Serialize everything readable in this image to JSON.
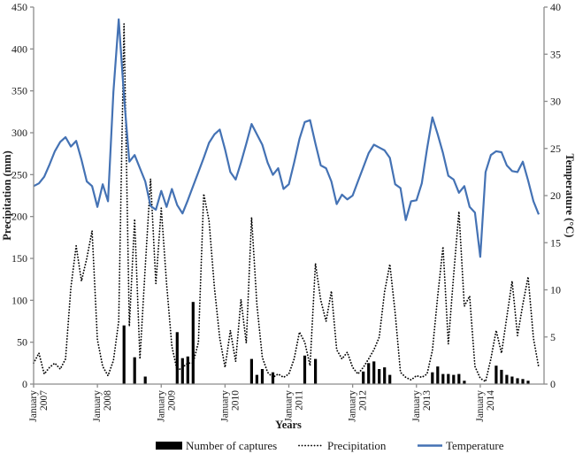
{
  "chart_data": {
    "type": "line",
    "subtype": "combo-bar-and-lines",
    "title": "",
    "xlabel": "Years",
    "ylabel_left": "Precipitation (mm)",
    "ylabel_right": "Temperature (°C)",
    "ylim_left": [
      0,
      450
    ],
    "ylim_right": [
      0,
      40
    ],
    "yticks_left": [
      0,
      50,
      100,
      150,
      200,
      250,
      300,
      350,
      400,
      450
    ],
    "yticks_right": [
      0,
      5,
      10,
      15,
      20,
      25,
      30,
      35,
      40
    ],
    "grid": false,
    "legend_position": "bottom",
    "x_tick_labels": [
      {
        "month": "January",
        "year": "2007"
      },
      {
        "month": "January",
        "year": "2008"
      },
      {
        "month": "January",
        "year": "2009"
      },
      {
        "month": "January",
        "year": "2010"
      },
      {
        "month": "January",
        "year": "2011"
      },
      {
        "month": "January",
        "year": "2012"
      },
      {
        "month": "January",
        "year": "2013"
      },
      {
        "month": "January",
        "year": "2014"
      }
    ],
    "x_months_start": "January 2007",
    "x_months_end": "December 2014",
    "series": [
      {
        "name": "Number of captures",
        "kind": "bar",
        "axis": "left",
        "color": "#000000",
        "values": [
          0,
          0,
          0,
          0,
          0,
          0,
          0,
          0,
          0,
          0,
          0,
          0,
          0,
          0,
          0,
          0,
          0,
          70,
          0,
          32,
          0,
          9,
          0,
          0,
          0,
          0,
          0,
          62,
          31,
          33,
          98,
          0,
          0,
          0,
          0,
          0,
          0,
          0,
          0,
          0,
          0,
          30,
          11,
          18,
          0,
          14,
          0,
          0,
          0,
          0,
          0,
          34,
          0,
          30,
          0,
          0,
          0,
          0,
          0,
          0,
          0,
          0,
          15,
          25,
          27,
          18,
          20,
          11,
          0,
          0,
          0,
          0,
          0,
          0,
          0,
          14,
          21,
          12,
          12,
          11,
          12,
          4,
          0,
          0,
          0,
          0,
          0,
          22,
          17,
          11,
          9,
          7,
          6,
          4,
          0,
          0
        ]
      },
      {
        "name": "Precipitation",
        "kind": "dotted-line",
        "axis": "left",
        "color": "#000000",
        "values": [
          25,
          37,
          12,
          20,
          25,
          18,
          30,
          115,
          165,
          123,
          150,
          183,
          53,
          21,
          10,
          28,
          75,
          430,
          69,
          197,
          30,
          140,
          245,
          120,
          210,
          120,
          45,
          16,
          20,
          25,
          25,
          50,
          227,
          195,
          115,
          55,
          20,
          64,
          27,
          101,
          49,
          199,
          95,
          32,
          14,
          8,
          12,
          8,
          12,
          30,
          62,
          50,
          22,
          144,
          100,
          75,
          111,
          41,
          30,
          38,
          20,
          12,
          20,
          30,
          41,
          56,
          110,
          143,
          85,
          14,
          8,
          5,
          10,
          8,
          12,
          40,
          105,
          164,
          48,
          130,
          206,
          93,
          105,
          21,
          7,
          3,
          30,
          64,
          37,
          80,
          123,
          58,
          95,
          128,
          55,
          20
        ]
      },
      {
        "name": "Temperature",
        "kind": "solid-line",
        "axis": "right",
        "color": "#4472b4",
        "values": [
          21.0,
          21.3,
          22.0,
          23.3,
          24.7,
          25.7,
          26.2,
          25.2,
          25.8,
          23.8,
          21.5,
          21.0,
          18.8,
          21.2,
          19.4,
          31.0,
          38.7,
          30.5,
          23.6,
          24.3,
          22.9,
          21.5,
          18.9,
          18.5,
          20.5,
          18.8,
          20.7,
          19.0,
          18.1,
          19.5,
          21.0,
          22.5,
          24.0,
          25.6,
          26.5,
          27.0,
          24.9,
          22.5,
          21.7,
          23.5,
          25.5,
          27.6,
          26.5,
          25.4,
          23.5,
          22.2,
          22.9,
          20.7,
          21.2,
          23.5,
          26.0,
          27.8,
          28.0,
          25.5,
          23.2,
          22.9,
          21.5,
          19.1,
          20.1,
          19.6,
          20.0,
          21.5,
          23.0,
          24.5,
          25.4,
          25.1,
          24.8,
          24.0,
          21.2,
          20.8,
          17.4,
          19.4,
          19.5,
          21.3,
          25.0,
          28.3,
          26.5,
          24.5,
          22.1,
          21.7,
          20.3,
          21.0,
          18.8,
          18.2,
          13.5,
          22.5,
          24.3,
          24.7,
          24.6,
          23.2,
          22.6,
          22.5,
          23.6,
          21.6,
          19.4,
          18.0
        ]
      }
    ]
  },
  "legend": {
    "captures_label": "Number of captures",
    "precipitation_label": "Precipitation",
    "temperature_label": "Temperature"
  },
  "labels": {
    "xlabel": "Years",
    "ylabel_left": "Precipitation (mm)",
    "ylabel_right": "Temperature (°C)"
  },
  "colors": {
    "temperature_line": "#4472b4",
    "precipitation_line": "#000000",
    "captures_bar": "#000000",
    "axis_line": "#8c8c8c",
    "text": "#1a1a1a"
  }
}
